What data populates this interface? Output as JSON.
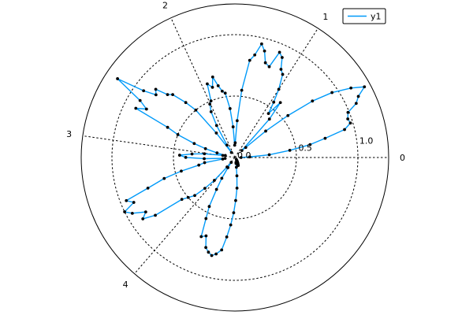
{
  "chart_data": {
    "type": "polar-line",
    "title": "",
    "angle_ticks": [
      0,
      1,
      2,
      3,
      4
    ],
    "radial_ticks": [
      0.0,
      0.5,
      1.0
    ],
    "rlim": [
      0.0,
      1.25
    ],
    "grid": true,
    "legend": {
      "position": "top-right"
    },
    "series": [
      {
        "name": "y1",
        "color": "#009af9",
        "marker_color": "#000000",
        "theta": [
          0.0,
          0.04,
          0.08,
          0.13,
          0.17,
          0.21,
          0.25,
          0.29,
          0.33,
          0.38,
          0.42,
          0.46,
          0.5,
          0.54,
          0.59,
          0.63,
          0.67,
          0.71,
          0.75,
          0.79,
          0.84,
          0.88,
          0.92,
          0.96,
          1.0,
          1.05,
          1.09,
          1.13,
          1.17,
          1.21,
          1.26,
          1.3,
          1.34,
          1.38,
          1.42,
          1.47,
          1.51,
          1.55,
          1.59,
          1.63,
          1.67,
          1.72,
          1.76,
          1.8,
          1.84,
          1.88,
          1.93,
          1.97,
          2.01,
          2.05,
          2.09,
          2.14,
          2.18,
          2.22,
          2.26,
          2.3,
          2.35,
          2.39,
          2.43,
          2.47,
          2.51,
          2.55,
          2.6,
          2.64,
          2.68,
          2.72,
          2.76,
          2.81,
          2.85,
          2.89,
          2.93,
          2.97,
          3.02,
          3.06,
          3.1,
          3.14,
          3.18,
          3.23,
          3.27,
          3.31,
          3.35,
          3.39,
          3.43,
          3.48,
          3.52,
          3.56,
          3.6,
          3.64,
          3.69,
          3.73,
          3.77,
          3.81,
          3.85,
          3.9,
          3.94,
          3.98,
          4.02,
          4.06,
          4.11,
          4.15,
          4.19,
          4.23,
          4.27,
          4.31,
          4.36,
          4.4,
          4.44,
          4.48,
          4.52,
          4.57,
          4.61,
          4.65,
          4.69,
          4.73,
          4.78,
          4.82,
          4.86,
          4.9,
          4.94,
          4.99,
          5.03,
          5.07,
          5.11,
          5.15,
          5.2,
          5.24,
          5.28,
          5.32
        ],
        "r": [
          0.05,
          0.12,
          0.28,
          0.45,
          0.62,
          0.75,
          0.92,
          0.98,
          0.97,
          0.99,
          1.08,
          1.12,
          1.2,
          1.1,
          0.95,
          0.78,
          0.55,
          0.33,
          0.12,
          0.08,
          0.42,
          0.58,
          0.45,
          0.55,
          0.66,
          0.78,
          0.81,
          0.9,
          0.93,
          0.79,
          0.81,
          0.9,
          0.95,
          0.85,
          0.8,
          0.55,
          0.3,
          0.12,
          0.1,
          0.25,
          0.4,
          0.53,
          0.55,
          0.6,
          0.68,
          0.6,
          0.64,
          0.5,
          0.48,
          0.42,
          0.3,
          0.12,
          0.05,
          0.25,
          0.5,
          0.6,
          0.72,
          0.75,
          0.85,
          0.82,
          0.92,
          1.15,
          0.9,
          0.82,
          0.9,
          0.6,
          0.5,
          0.35,
          0.25,
          0.15,
          0.08,
          0.1,
          0.25,
          0.35,
          0.45,
          0.4,
          0.25,
          0.08,
          0.1,
          0.25,
          0.3,
          0.45,
          0.6,
          0.75,
          0.95,
          0.9,
          1.0,
          0.95,
          0.85,
          0.9,
          0.8,
          0.55,
          0.5,
          0.45,
          0.35,
          0.25,
          0.1,
          0.05,
          0.1,
          0.2,
          0.3,
          0.45,
          0.55,
          0.7,
          0.68,
          0.77,
          0.8,
          0.82,
          0.8,
          0.76,
          0.65,
          0.55,
          0.45,
          0.35,
          0.25,
          0.15,
          0.08,
          0.05,
          0.04,
          0.04,
          0.05,
          0.06,
          0.07,
          0.06,
          0.05,
          0.04,
          0.03,
          0.02
        ]
      }
    ]
  }
}
